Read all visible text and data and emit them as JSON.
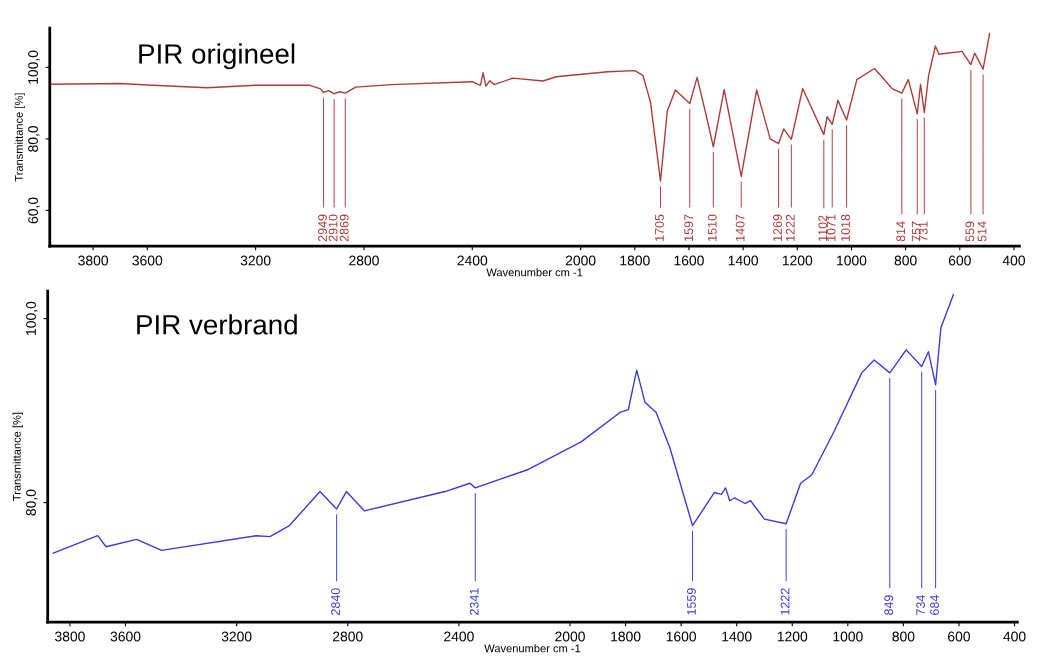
{
  "chart_data": [
    {
      "type": "line",
      "title": "PIR origineel",
      "xlabel": "Wavenumber cm -1",
      "ylabel": "Transmittance [%]",
      "xlim": [
        3960,
        380
      ],
      "xticks": [
        3800,
        3600,
        3200,
        2800,
        2400,
        2000,
        1800,
        1600,
        1400,
        1200,
        1000,
        800,
        600,
        400
      ],
      "ylim": [
        50,
        111
      ],
      "yticks": [
        {
          "value": 100,
          "label": "100,0"
        },
        {
          "value": 80,
          "label": "80,0"
        },
        {
          "value": 60,
          "label": "60,0"
        }
      ],
      "grid": false,
      "series": [
        {
          "color": "#b03a3a",
          "x": [
            3960,
            3700,
            3600,
            3380,
            3200,
            3000,
            2960,
            2949,
            2930,
            2910,
            2890,
            2869,
            2830,
            2700,
            2400,
            2370,
            2360,
            2350,
            2335,
            2320,
            2250,
            2139,
            2090,
            1900,
            1800,
            1770,
            1742,
            1705,
            1680,
            1650,
            1597,
            1570,
            1540,
            1510,
            1470,
            1407,
            1350,
            1300,
            1269,
            1250,
            1222,
            1180,
            1102,
            1090,
            1071,
            1050,
            1018,
            980,
            915,
            850,
            814,
            790,
            757,
            745,
            731,
            715,
            690,
            677,
            592,
            559,
            545,
            514,
            490
          ],
          "values": [
            95.3,
            95.5,
            95.1,
            94.3,
            95.0,
            95.0,
            94.0,
            93.0,
            93.5,
            92.6,
            93.2,
            92.8,
            94.5,
            95.2,
            96.0,
            95.0,
            98.5,
            94.8,
            96.3,
            95.2,
            97.0,
            96.2,
            97.4,
            98.8,
            99.1,
            97.8,
            90.3,
            68.2,
            87.8,
            93.7,
            89.9,
            97.2,
            87.8,
            77.8,
            93.8,
            69.5,
            93.7,
            80.0,
            78.7,
            82.8,
            79.9,
            94.1,
            81.2,
            86.2,
            84.1,
            90.8,
            85.3,
            96.6,
            99.7,
            94.1,
            92.8,
            96.6,
            87.0,
            95.3,
            87.4,
            97.8,
            106.0,
            103.7,
            104.5,
            100.8,
            104.0,
            99.5,
            109.5
          ]
        }
      ],
      "annotations": [
        {
          "text": "2949",
          "x": 2949,
          "y": 93.0
        },
        {
          "text": "2910",
          "x": 2910,
          "y": 92.6
        },
        {
          "text": "2869",
          "x": 2869,
          "y": 92.8
        },
        {
          "text": "1705",
          "x": 1705,
          "y": 68.2
        },
        {
          "text": "1597",
          "x": 1597,
          "y": 89.9
        },
        {
          "text": "1510",
          "x": 1510,
          "y": 77.8
        },
        {
          "text": "1407",
          "x": 1407,
          "y": 69.5
        },
        {
          "text": "1269",
          "x": 1269,
          "y": 78.7
        },
        {
          "text": "1222",
          "x": 1222,
          "y": 79.9
        },
        {
          "text": "1102",
          "x": 1102,
          "y": 81.2
        },
        {
          "text": "1071",
          "x": 1071,
          "y": 84.1
        },
        {
          "text": "1018",
          "x": 1018,
          "y": 85.3
        },
        {
          "text": "814",
          "x": 814,
          "y": 92.8
        },
        {
          "text": "757",
          "x": 757,
          "y": 87.0
        },
        {
          "text": "731",
          "x": 731,
          "y": 87.4
        },
        {
          "text": "559",
          "x": 559,
          "y": 100.8
        },
        {
          "text": "514",
          "x": 514,
          "y": 99.5
        }
      ]
    },
    {
      "type": "line",
      "title": "PIR verbrand",
      "xlabel": "Wavenumber cm -1",
      "ylabel": "Transmittance [%]",
      "xlim": [
        3880,
        390
      ],
      "xticks": [
        3800,
        3600,
        3200,
        2800,
        2400,
        2000,
        1800,
        1600,
        1400,
        1200,
        1000,
        800,
        600,
        400
      ],
      "ylim": [
        67,
        103
      ],
      "yticks": [
        {
          "value": 100,
          "label": "100,0"
        },
        {
          "value": 80,
          "label": "80,0"
        }
      ],
      "grid": false,
      "series": [
        {
          "color": "#3a3ae0",
          "x": [
            3860,
            3700,
            3670,
            3560,
            3470,
            3130,
            3080,
            3010,
            2900,
            2840,
            2805,
            2740,
            2450,
            2360,
            2341,
            2150,
            1960,
            1820,
            1790,
            1760,
            1730,
            1690,
            1640,
            1559,
            1480,
            1455,
            1440,
            1425,
            1408,
            1370,
            1350,
            1300,
            1222,
            1170,
            1130,
            1050,
            950,
            905,
            849,
            790,
            734,
            710,
            684,
            665,
            620
          ],
          "values": [
            74.5,
            76.4,
            75.2,
            76.0,
            74.8,
            76.4,
            76.3,
            77.5,
            81.2,
            79.3,
            81.2,
            79.1,
            81.2,
            82.1,
            81.6,
            83.6,
            86.6,
            89.8,
            90.1,
            94.4,
            90.9,
            89.8,
            85.9,
            77.5,
            81.1,
            80.9,
            81.6,
            80.2,
            80.5,
            79.9,
            80.2,
            78.2,
            77.7,
            82.1,
            83.0,
            87.7,
            94.1,
            95.5,
            94.1,
            96.6,
            94.8,
            96.4,
            92.8,
            99.0,
            102.6
          ]
        }
      ],
      "annotations": [
        {
          "text": "2840",
          "x": 2840,
          "y": 79.3
        },
        {
          "text": "2341",
          "x": 2341,
          "y": 81.6
        },
        {
          "text": "1559",
          "x": 1559,
          "y": 77.5
        },
        {
          "text": "1222",
          "x": 1222,
          "y": 77.7
        },
        {
          "text": "849",
          "x": 849,
          "y": 94.1
        },
        {
          "text": "734",
          "x": 734,
          "y": 94.8
        },
        {
          "text": "684",
          "x": 684,
          "y": 92.8
        }
      ]
    }
  ]
}
